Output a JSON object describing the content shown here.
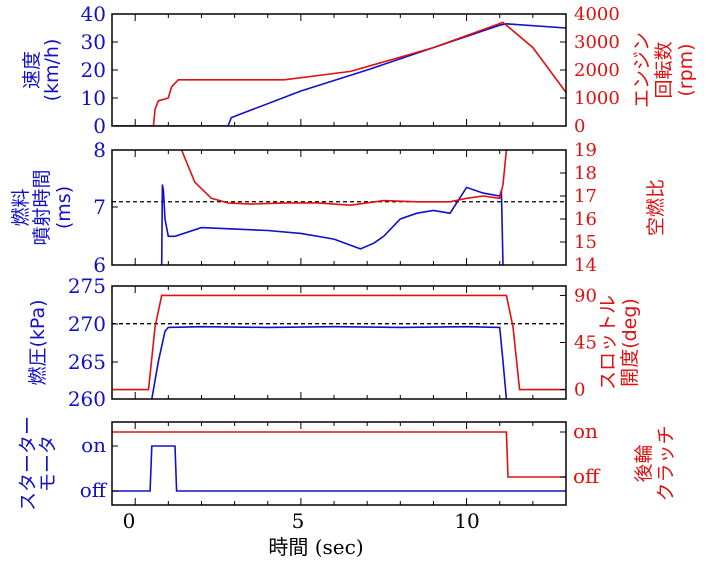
{
  "colors": {
    "blue": "#1010c8",
    "red": "#e01010",
    "axis": "#000000"
  },
  "chart_data": [
    {
      "type": "line",
      "panel": "speed-rpm",
      "x_range": [
        -0.7,
        13.0
      ],
      "left_axis": {
        "label_lines": [
          "速度",
          "(km/h)"
        ],
        "ylim": [
          0,
          40
        ],
        "ticks": [
          "0",
          "10",
          "20",
          "30",
          "40"
        ],
        "color": "blue"
      },
      "right_axis": {
        "label_lines": [
          "エンジン",
          "回転数",
          "(rpm)"
        ],
        "ylim": [
          0,
          4000
        ],
        "ticks": [
          "0",
          "1000",
          "2000",
          "3000",
          "4000"
        ],
        "color": "red"
      },
      "series": [
        {
          "axis": "left",
          "color": "blue",
          "x": [
            -0.7,
            2.8,
            2.9,
            5,
            7,
            9,
            11,
            11.2,
            13
          ],
          "y": [
            0,
            0,
            3,
            12.5,
            20,
            28,
            36,
            36.5,
            35
          ]
        },
        {
          "axis": "right",
          "color": "red",
          "x": [
            -0.7,
            0.55,
            0.6,
            0.7,
            1.0,
            1.1,
            1.3,
            2.5,
            4.5,
            6.5,
            9,
            11.1,
            11.3,
            12,
            13
          ],
          "y": [
            0,
            0,
            600,
            900,
            1000,
            1400,
            1650,
            1650,
            1650,
            1950,
            2800,
            3700,
            3500,
            2800,
            1200
          ]
        }
      ]
    },
    {
      "type": "line",
      "panel": "injection-afr",
      "x_range": [
        -0.7,
        13.0
      ],
      "left_axis": {
        "label_lines": [
          "燃料",
          "噴射時間",
          "(ms)"
        ],
        "ylim": [
          6,
          8
        ],
        "ticks": [
          "6",
          "7",
          "8"
        ],
        "color": "blue"
      },
      "right_axis": {
        "label_lines": [
          "空燃比"
        ],
        "ylim": [
          14,
          19
        ],
        "ticks": [
          "14",
          "15",
          "16",
          "17",
          "18",
          "19"
        ],
        "color": "red"
      },
      "reference_line": {
        "axis": "left",
        "y": 7.1,
        "style": "dashed"
      },
      "series": [
        {
          "axis": "left",
          "color": "blue",
          "x": [
            0.8,
            0.82,
            0.85,
            0.9,
            1.0,
            1.2,
            2,
            4,
            5,
            6,
            6.8,
            7.2,
            7.5,
            8,
            8.5,
            9,
            9.5,
            10,
            10.5,
            11,
            11.05,
            11.1
          ],
          "y": [
            6,
            7.4,
            7.3,
            6.8,
            6.5,
            6.5,
            6.65,
            6.6,
            6.55,
            6.45,
            6.28,
            6.38,
            6.5,
            6.8,
            6.9,
            6.95,
            6.9,
            7.35,
            7.25,
            7.2,
            7.3,
            6
          ]
        },
        {
          "axis": "right",
          "color": "red",
          "x": [
            1.4,
            1.8,
            2.3,
            2.8,
            3.5,
            4.5,
            5.5,
            6.5,
            7.5,
            8.5,
            9.5,
            10,
            10.5,
            11,
            11.1,
            11.2
          ],
          "y": [
            19,
            17.6,
            16.9,
            16.7,
            16.65,
            16.7,
            16.7,
            16.6,
            16.8,
            16.75,
            16.75,
            16.9,
            17.0,
            16.9,
            17.5,
            19
          ]
        }
      ]
    },
    {
      "type": "line",
      "panel": "fuel-pressure-throttle",
      "x_range": [
        -0.7,
        13.0
      ],
      "left_axis": {
        "label_lines": [
          "燃圧(kPa)"
        ],
        "ylim": [
          260,
          275
        ],
        "ticks": [
          "260",
          "265",
          "270",
          "275"
        ],
        "color": "blue"
      },
      "right_axis": {
        "label_lines": [
          "スロットル",
          "開度(deg)"
        ],
        "ylim": [
          -9,
          99
        ],
        "ticks": [
          "0",
          "45",
          "90"
        ],
        "color": "red"
      },
      "reference_line": {
        "axis": "left",
        "y": 270,
        "style": "dashed"
      },
      "series": [
        {
          "axis": "left",
          "color": "blue",
          "x": [
            0.5,
            0.7,
            0.9,
            1.0,
            2,
            4,
            6,
            8,
            10,
            11,
            11.1,
            11.2
          ],
          "y": [
            260,
            265,
            269,
            269.5,
            269.6,
            269.5,
            269.6,
            269.5,
            269.6,
            269.5,
            265,
            260
          ]
        },
        {
          "axis": "right",
          "color": "red",
          "x": [
            -0.7,
            0.4,
            0.6,
            0.8,
            11.2,
            11.4,
            11.6,
            13
          ],
          "y": [
            0,
            0,
            60,
            90,
            90,
            60,
            0,
            0
          ]
        }
      ]
    },
    {
      "type": "line",
      "panel": "starter-clutch",
      "x_range": [
        -0.7,
        13.0
      ],
      "left_axis": {
        "label_lines": [
          "スターター",
          "モータ"
        ],
        "states": [
          "off",
          "on"
        ],
        "color": "blue"
      },
      "right_axis": {
        "label_lines": [
          "後輪",
          "クラッチ"
        ],
        "states": [
          "off",
          "on"
        ],
        "color": "red"
      },
      "series": [
        {
          "axis": "left",
          "color": "blue",
          "x": [
            -0.7,
            0.45,
            0.5,
            1.2,
            1.25,
            13
          ],
          "y": [
            0,
            0,
            1,
            1,
            0,
            0
          ]
        },
        {
          "axis": "right",
          "color": "red",
          "x": [
            -0.7,
            11.2,
            11.25,
            13
          ],
          "y": [
            1,
            1,
            0,
            0
          ]
        }
      ]
    }
  ],
  "x_axis": {
    "label": "時間 (sec)",
    "ticks": [
      "0",
      "5",
      "10"
    ]
  }
}
